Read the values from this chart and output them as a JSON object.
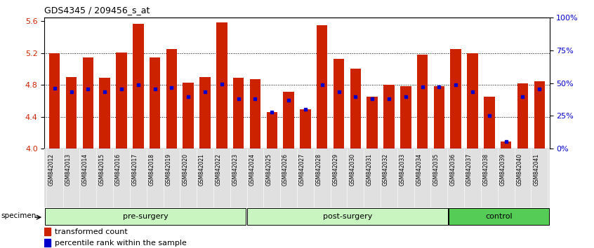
{
  "title": "GDS4345 / 209456_s_at",
  "samples": [
    "GSM842012",
    "GSM842013",
    "GSM842014",
    "GSM842015",
    "GSM842016",
    "GSM842017",
    "GSM842018",
    "GSM842019",
    "GSM842020",
    "GSM842021",
    "GSM842022",
    "GSM842023",
    "GSM842024",
    "GSM842025",
    "GSM842026",
    "GSM842027",
    "GSM842028",
    "GSM842029",
    "GSM842030",
    "GSM842031",
    "GSM842032",
    "GSM842033",
    "GSM842034",
    "GSM842035",
    "GSM842036",
    "GSM842037",
    "GSM842038",
    "GSM842039",
    "GSM842040",
    "GSM842041"
  ],
  "red_values": [
    5.2,
    4.9,
    5.15,
    4.89,
    5.21,
    5.57,
    5.15,
    5.25,
    4.83,
    4.9,
    5.59,
    4.89,
    4.87,
    4.46,
    4.72,
    4.5,
    5.55,
    5.13,
    5.01,
    4.65,
    4.8,
    4.79,
    5.18,
    4.79,
    5.25,
    5.2,
    4.65,
    4.09,
    4.82,
    4.85
  ],
  "blue_values": [
    4.76,
    4.72,
    4.75,
    4.72,
    4.75,
    4.8,
    4.75,
    4.77,
    4.65,
    4.72,
    4.81,
    4.63,
    4.63,
    4.46,
    4.61,
    4.5,
    4.8,
    4.72,
    4.65,
    4.63,
    4.63,
    4.65,
    4.78,
    4.78,
    4.8,
    4.72,
    4.42,
    4.09,
    4.65,
    4.75
  ],
  "groups": [
    {
      "label": "pre-surgery",
      "start": 0,
      "end": 12,
      "color": "#c8f5c0"
    },
    {
      "label": "post-surgery",
      "start": 12,
      "end": 24,
      "color": "#c8f5c0"
    },
    {
      "label": "control",
      "start": 24,
      "end": 30,
      "color": "#55cc55"
    }
  ],
  "ylim_left": [
    4.0,
    5.65
  ],
  "yticks_left": [
    4.0,
    4.4,
    4.8,
    5.2,
    5.6
  ],
  "yticks_right_vals": [
    0,
    25,
    50,
    75,
    100
  ],
  "yticks_right_labels": [
    "0%",
    "25%",
    "50%",
    "75%",
    "100%"
  ],
  "bar_color": "#CC2200",
  "dot_color": "#0000CC",
  "baseline": 4.0,
  "tick_label_color_left": "#CC2200",
  "tick_label_color_right": "#0000CC"
}
